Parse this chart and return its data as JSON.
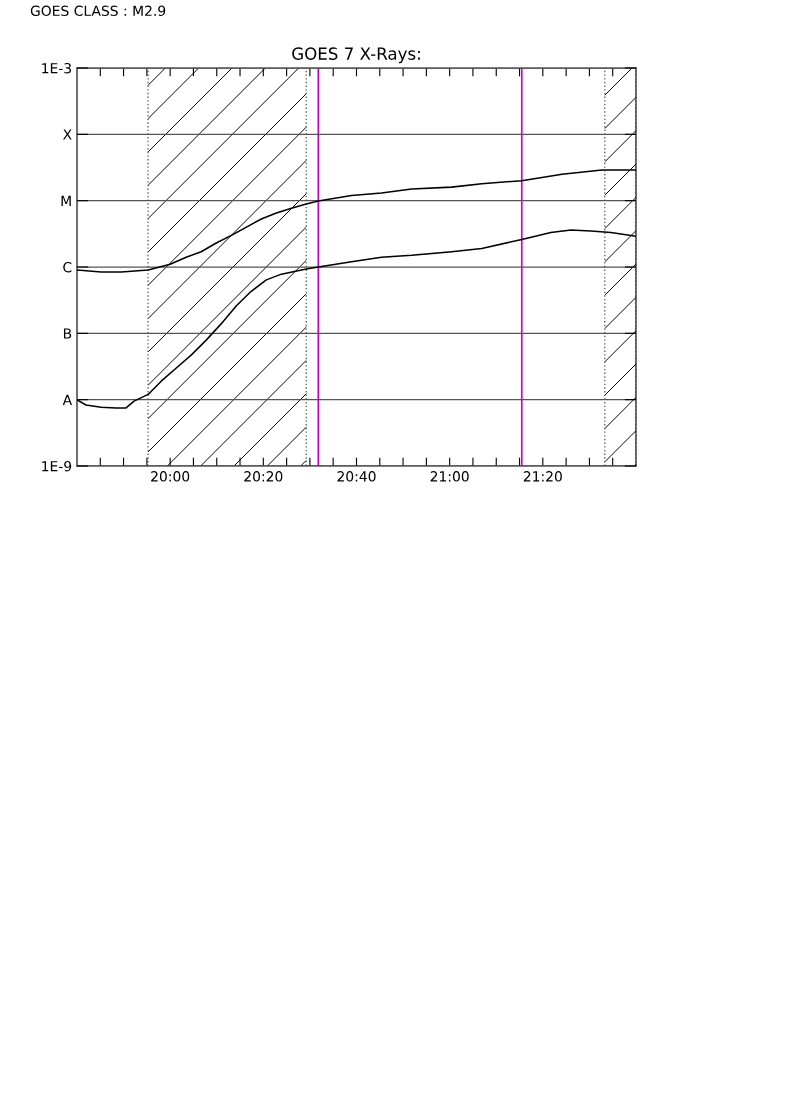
{
  "chart_data": {
    "type": "line",
    "title": "GOES 7 X-Rays:",
    "annotations": [
      "GOES CLASS : M2.9"
    ],
    "log": "y",
    "grid": "y",
    "line_style": "solid",
    "marker": "none",
    "xlim": [
      19.6667,
      21.6667
    ],
    "xticks": [
      {
        "value": 19.75,
        "label": null
      },
      {
        "value": 19.8333,
        "label": null
      },
      {
        "value": 19.9167,
        "label": null
      },
      {
        "value": 20.0,
        "label": "20:00"
      },
      {
        "value": 20.0833,
        "label": null
      },
      {
        "value": 20.1667,
        "label": null
      },
      {
        "value": 20.25,
        "label": null
      },
      {
        "value": 20.3333,
        "label": "20:20"
      },
      {
        "value": 20.4167,
        "label": null
      },
      {
        "value": 20.5,
        "label": null
      },
      {
        "value": 20.5833,
        "label": null
      },
      {
        "value": 20.6667,
        "label": "20:40"
      },
      {
        "value": 20.75,
        "label": null
      },
      {
        "value": 20.8333,
        "label": null
      },
      {
        "value": 20.9167,
        "label": null
      },
      {
        "value": 21.0,
        "label": "21:00"
      },
      {
        "value": 21.0833,
        "label": null
      },
      {
        "value": 21.1667,
        "label": null
      },
      {
        "value": 21.25,
        "label": null
      },
      {
        "value": 21.3333,
        "label": "21:20"
      },
      {
        "value": 21.4167,
        "label": null
      },
      {
        "value": 21.5,
        "label": null
      },
      {
        "value": 21.5833,
        "label": null
      }
    ],
    "ylim": [
      1e-09,
      0.001
    ],
    "yticks": [
      {
        "value": 1e-09,
        "label": "1E-9"
      },
      {
        "value": 1e-08,
        "label": "A"
      },
      {
        "value": 1e-07,
        "label": "B"
      },
      {
        "value": 1e-06,
        "label": "C"
      },
      {
        "value": 1e-05,
        "label": "M"
      },
      {
        "value": 0.0001,
        "label": "X"
      },
      {
        "value": 0.001,
        "label": "1E-3"
      }
    ],
    "bands": [
      {
        "axis": "x",
        "from": 19.921,
        "to": 20.487,
        "label": null
      },
      {
        "axis": "x",
        "from": 21.555,
        "to": 21.6667,
        "label": null
      }
    ],
    "ref_lines": [
      {
        "axis": "x",
        "value": 20.53,
        "label": null,
        "color": "#cc00cc"
      },
      {
        "axis": "x",
        "value": 21.258,
        "label": null,
        "color": "#cc00cc"
      }
    ],
    "series": [
      {
        "color": "#000000",
        "x": [
          19.667,
          19.753,
          19.825,
          19.921,
          20.0,
          20.057,
          20.111,
          20.165,
          20.219,
          20.273,
          20.326,
          20.38,
          20.434,
          20.487,
          20.53,
          20.649,
          20.756,
          20.864,
          21.007,
          21.115,
          21.258,
          21.402,
          21.545,
          21.6667
        ],
        "values": [
          9e-07,
          8.4e-07,
          8.4e-07,
          9e-07,
          1.1e-06,
          1.4e-06,
          1.7e-06,
          2.3e-06,
          3e-06,
          4e-06,
          5.3e-06,
          6.5e-06,
          7.7e-06,
          8.9e-06,
          9.9e-06,
          1.2e-05,
          1.3e-05,
          1.5e-05,
          1.6e-05,
          1.8e-05,
          2e-05,
          2.5e-05,
          2.9e-05,
          2.9e-05
        ]
      },
      {
        "color": "#000000",
        "x": [
          19.667,
          19.699,
          19.753,
          19.806,
          19.842,
          19.871,
          19.921,
          19.968,
          20.022,
          20.075,
          20.129,
          20.183,
          20.237,
          20.29,
          20.344,
          20.398,
          20.487,
          20.53,
          20.649,
          20.756,
          20.864,
          21.007,
          21.115,
          21.258,
          21.362,
          21.434,
          21.505,
          21.577,
          21.6667
        ],
        "values": [
          9.9e-09,
          8.3e-09,
          7.7e-09,
          7.5e-09,
          7.5e-09,
          9.5e-09,
          1.2e-08,
          1.9e-08,
          3e-08,
          4.7e-08,
          7.9e-08,
          1.4e-07,
          2.6e-07,
          4.3e-07,
          6.4e-07,
          7.8e-07,
          9.3e-07,
          1e-06,
          1.2e-06,
          1.4e-06,
          1.5e-06,
          1.7e-06,
          1.9e-06,
          2.6e-06,
          3.3e-06,
          3.6e-06,
          3.5e-06,
          3.3e-06,
          2.9e-06
        ]
      }
    ]
  }
}
